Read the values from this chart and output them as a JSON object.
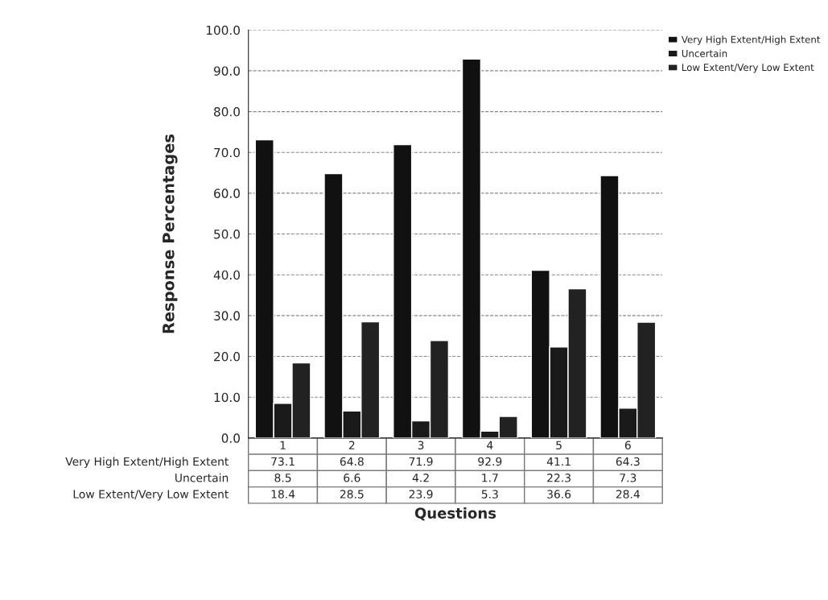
{
  "chart_data": {
    "type": "bar",
    "xlabel": "Questions",
    "ylabel": "Response Percentages",
    "categories": [
      "1",
      "2",
      "3",
      "4",
      "5",
      "6"
    ],
    "series": [
      {
        "name": "Very High Extent/High Extent",
        "color": "#111111",
        "values": [
          73.1,
          64.8,
          71.9,
          92.9,
          41.1,
          64.3
        ]
      },
      {
        "name": "Uncertain",
        "color": "#1a1a1a",
        "values": [
          8.5,
          6.6,
          4.2,
          1.7,
          22.3,
          7.3
        ]
      },
      {
        "name": "Low Extent/Very Low Extent",
        "color": "#222222",
        "values": [
          18.4,
          28.5,
          23.9,
          5.3,
          36.6,
          28.4
        ]
      }
    ],
    "ylim": [
      0,
      100
    ],
    "yticks": [
      {
        "value": 0,
        "label": "0.0"
      },
      {
        "value": 10,
        "label": "10.0"
      },
      {
        "value": 20,
        "label": "20.0"
      },
      {
        "value": 30,
        "label": "30.0"
      },
      {
        "value": 40,
        "label": "40.0"
      },
      {
        "value": 50,
        "label": "50.0"
      },
      {
        "value": 60,
        "label": "60.0"
      },
      {
        "value": 70,
        "label": "70.0"
      },
      {
        "value": 80,
        "label": "80.0"
      },
      {
        "value": 90,
        "label": "90.0"
      },
      {
        "value": 100,
        "label": "100.0"
      }
    ],
    "grid": "y",
    "legend": "top right",
    "data_labels": true
  }
}
